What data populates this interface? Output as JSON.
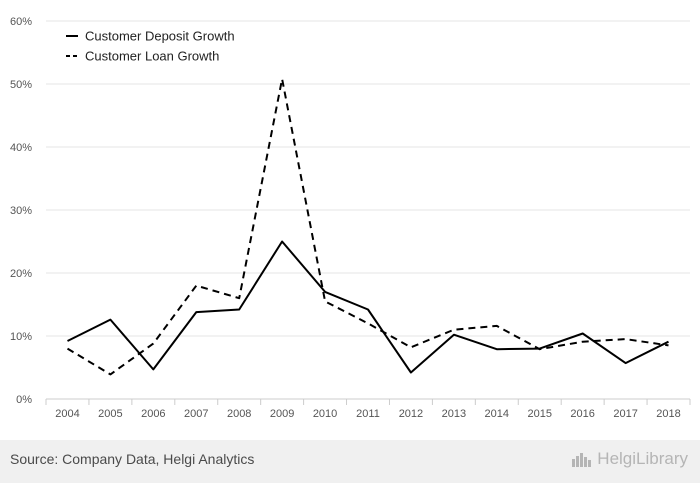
{
  "chart_data": {
    "type": "line",
    "x": [
      "2004",
      "2005",
      "2006",
      "2007",
      "2008",
      "2009",
      "2010",
      "2011",
      "2012",
      "2013",
      "2014",
      "2015",
      "2016",
      "2017",
      "2018"
    ],
    "series": [
      {
        "name": "Customer Deposit Growth",
        "style": "solid",
        "color": "#000000",
        "values": [
          9.2,
          12.6,
          4.7,
          13.8,
          14.2,
          25.0,
          17.0,
          14.2,
          4.2,
          10.2,
          7.9,
          8.0,
          10.4,
          5.7,
          9.1
        ]
      },
      {
        "name": "Customer Loan Growth",
        "style": "dashed",
        "color": "#000000",
        "values": [
          8.0,
          3.9,
          8.8,
          18.0,
          16.0,
          50.8,
          15.5,
          12.0,
          8.2,
          11.0,
          11.6,
          7.9,
          9.1,
          9.5,
          8.5
        ]
      }
    ],
    "yticks": [
      "0%",
      "10%",
      "20%",
      "30%",
      "40%",
      "50%",
      "60%"
    ],
    "ylim": [
      0,
      60
    ],
    "grid": true,
    "legend_position": "top-left"
  },
  "footer": {
    "source": "Source: Company Data, Helgi Analytics",
    "brand": "HelgiLibrary"
  }
}
